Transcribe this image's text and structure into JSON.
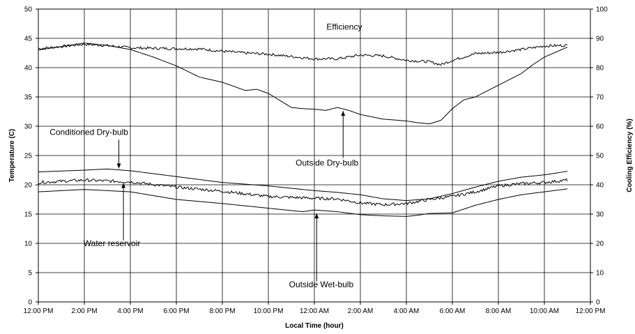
{
  "chart_data": {
    "type": "line",
    "xlabel": "Local Time (hour)",
    "ylabel_left": "Temperature (C)",
    "ylabel_right": "Cooling Efficiency (%)",
    "ylim_left": [
      0,
      50
    ],
    "ylim_right": [
      0,
      100
    ],
    "grid": true,
    "x_unit": "hours since 12:00 PM",
    "x_ticks": [
      "12:00 PM",
      "2:00 PM",
      "4:00 PM",
      "6:00 PM",
      "8:00 PM",
      "10:00 PM",
      "12:00 AM",
      "2:00 AM",
      "4:00 AM",
      "6:00 AM",
      "8:00 AM",
      "10:00 AM",
      "12:00 PM"
    ],
    "y_ticks_left": [
      "0",
      "5",
      "10",
      "15",
      "20",
      "25",
      "30",
      "35",
      "40",
      "45",
      "50"
    ],
    "y_ticks_right": [
      "0",
      "10",
      "20",
      "30",
      "40",
      "50",
      "60",
      "70",
      "80",
      "90",
      "100"
    ],
    "series": [
      {
        "name": "Outside Dry-bulb",
        "axis": "left",
        "noise": 0,
        "x": [
          0,
          1,
          2,
          3,
          4,
          5,
          6,
          7,
          8,
          9,
          9.5,
          10,
          11,
          11.5,
          12,
          12.5,
          13,
          13.5,
          14,
          15,
          16,
          16.5,
          17,
          17.5,
          18,
          18.5,
          19,
          20,
          21,
          21.5,
          22,
          23
        ],
        "y": [
          43,
          43.6,
          44.2,
          43.8,
          43.1,
          41.8,
          40.3,
          38.4,
          37.5,
          36.1,
          36.3,
          35.6,
          33.2,
          33,
          32.9,
          32.7,
          33.2,
          32.7,
          32,
          31.2,
          30.9,
          30.6,
          30.4,
          31,
          33,
          34.5,
          35,
          37,
          39,
          40.5,
          41.8,
          43.5
        ]
      },
      {
        "name": "Efficiency",
        "axis": "right",
        "noise": 0.45,
        "x": [
          0,
          1,
          2,
          3,
          4,
          5,
          6,
          7,
          8,
          9,
          10,
          11,
          12,
          13,
          14,
          15,
          16,
          17,
          17.5,
          18,
          19,
          20,
          21,
          22,
          23
        ],
        "y": [
          86.5,
          87.2,
          88,
          87.5,
          86.8,
          86.6,
          86.5,
          86.4,
          85.6,
          85,
          84.6,
          83.8,
          83,
          83,
          84.3,
          84,
          82.5,
          82,
          81,
          82.5,
          84.8,
          85.2,
          86.2,
          87.4,
          87.6
        ]
      },
      {
        "name": "Conditioned Dry-bulb",
        "axis": "left",
        "noise": 0,
        "x": [
          0,
          2,
          3,
          4,
          6,
          8,
          10,
          12,
          13,
          14,
          15,
          16,
          17,
          18,
          19,
          20,
          21,
          22,
          23
        ],
        "y": [
          22.2,
          22.5,
          22.7,
          22.4,
          21.4,
          20.4,
          19.8,
          19,
          18.7,
          18.3,
          17.6,
          17.3,
          17.6,
          18.5,
          19.6,
          20.6,
          21.3,
          21.7,
          22.3
        ]
      },
      {
        "name": "Water reservoir",
        "axis": "left",
        "noise": 0.25,
        "x": [
          0,
          2,
          4,
          6,
          8,
          10,
          12,
          13,
          14,
          15,
          16,
          17,
          18,
          19,
          20,
          21,
          22,
          23
        ],
        "y": [
          20.4,
          20.8,
          20.5,
          19.6,
          18.9,
          18,
          17.7,
          17.6,
          16.9,
          16.6,
          16.8,
          17.5,
          18,
          18.8,
          19.8,
          20.2,
          20.4,
          20.8
        ]
      },
      {
        "name": "Outside Wet-bulb",
        "axis": "left",
        "noise": 0,
        "x": [
          0,
          2,
          4,
          6,
          8,
          10,
          11.5,
          12,
          13,
          14,
          15,
          16,
          16.5,
          17,
          18,
          19,
          20,
          21,
          22,
          23
        ],
        "y": [
          18.8,
          19.2,
          18.8,
          17.5,
          16.8,
          16,
          15.4,
          15.7,
          15.4,
          14.9,
          14.7,
          14.6,
          14.8,
          15.1,
          15.2,
          16.5,
          17.5,
          18.3,
          18.8,
          19.3
        ]
      }
    ],
    "annotations": [
      {
        "text": "Efficiency",
        "x": 13.3,
        "y": 46.5
      },
      {
        "text": "Outside Dry-bulb",
        "x": 12.55,
        "y": 23.3
      },
      {
        "text": "Conditioned Dry-bulb",
        "x": 2.2,
        "y": 28.5
      },
      {
        "text": "Water reservoir",
        "x": 3.2,
        "y": 9.5
      },
      {
        "text": "Outside  Wet-bulb",
        "x": 12.3,
        "y": 2.5
      }
    ]
  }
}
